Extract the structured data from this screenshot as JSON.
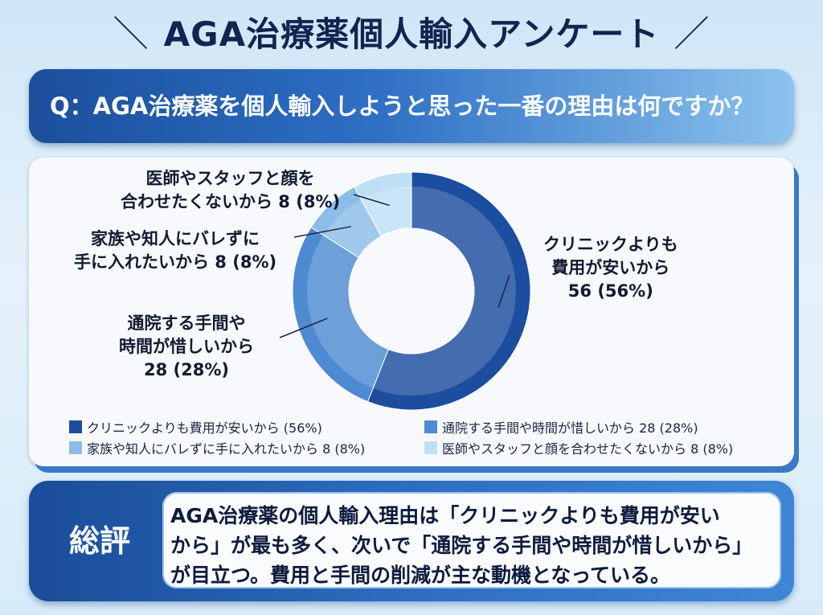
{
  "header": {
    "slash_left": "＼",
    "title": "AGA治療薬個人輸入アンケート",
    "slash_right": "／"
  },
  "question": {
    "text": "Q：AGA治療薬を個人輸入しようと思った一番の理由は何ですか？"
  },
  "colors": {
    "s1": "#1c4d9f",
    "s2": "#4e8ad1",
    "s3": "#8cbce8",
    "s4": "#bfe0f4",
    "question_bar": "#1b4f9c",
    "summary_bar": "#2f70c4"
  },
  "chart_data": {
    "type": "pie",
    "title": "",
    "categories": [
      "クリニックよりも費用が安いから",
      "通院する手間や時間が惜しいから",
      "家族や知人にバレずに手に入れたいから",
      "医師やスタッフと顔を合わせたくないから"
    ],
    "values": [
      56,
      28,
      8,
      8
    ],
    "percent": [
      56,
      28,
      8,
      8
    ],
    "donut": true,
    "labels": [
      {
        "line1": "クリニックよりも",
        "line2": "費用が安いから",
        "line3": "56 (56%)"
      },
      {
        "line1": "通院する手間や",
        "line2": "時間が惜しいから",
        "line3": "28 (28%)"
      },
      {
        "line1": "家族や知人にバレずに",
        "line2": "手に入れたいから 8 (8%)"
      },
      {
        "line1": "医師やスタッフと顔を",
        "line2": "合わせたくないから 8 (8%)"
      }
    ],
    "legend": [
      "クリニックよりも費用が安いから (56%)",
      "通院する手間や時間が惜しいから 28 (28%)",
      "家族や知人にバレずに手に入れたいから 8 (8%)",
      "医師やスタッフと顔を合わせたくないから 8 (8%)"
    ],
    "legend_position": "bottom"
  },
  "summary": {
    "heading": "総評",
    "line1": "AGA治療薬の個人輸入理由は「クリニックよりも費用が安い",
    "line2": "から」が最も多く、次いで「通院する手間や時間が惜しいから」",
    "line3": "が目立つ。費用と手間の削減が主な動機となっている。"
  }
}
